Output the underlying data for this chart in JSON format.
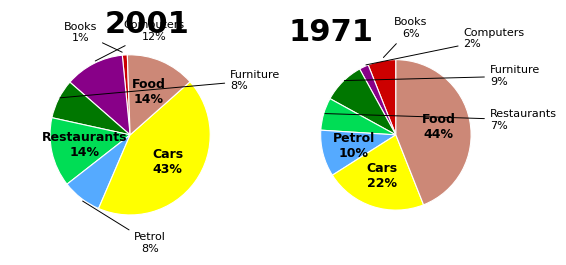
{
  "chart2001": {
    "title": "2001",
    "labels": [
      "Books",
      "Computers",
      "Furniture",
      "Restaurants",
      "Petrol",
      "Cars",
      "Food"
    ],
    "values": [
      1,
      12,
      8,
      14,
      8,
      43,
      14
    ],
    "colors": [
      "#cc0000",
      "#880088",
      "#007700",
      "#00dd55",
      "#55aaff",
      "#ffff00",
      "#cc8877"
    ],
    "startangle": 92,
    "outside_labels": [
      "Books\n1%",
      "Computers\n12%",
      "Furniture\n8%",
      null,
      "Petrol\n8%",
      null,
      null
    ],
    "inside_labels": [
      null,
      null,
      null,
      "Restaurants\n14%",
      null,
      "Cars\n43%",
      "Food\n14%"
    ]
  },
  "chart1971": {
    "title": "1971",
    "labels": [
      "Books",
      "Computers",
      "Furniture",
      "Restaurants",
      "Petrol",
      "Cars",
      "Food"
    ],
    "values": [
      6,
      2,
      9,
      7,
      10,
      22,
      44
    ],
    "colors": [
      "#cc0000",
      "#880088",
      "#007700",
      "#00dd55",
      "#55aaff",
      "#ffff00",
      "#cc8877"
    ],
    "startangle": 90,
    "outside_labels": [
      "Books\n6%",
      "Computers\n2%",
      "Furniture\n9%",
      "Restaurants\n7%",
      null,
      null,
      null
    ],
    "inside_labels": [
      null,
      null,
      null,
      null,
      "Petrol\n10%",
      "Cars\n22%",
      "Food\n44%"
    ]
  },
  "title_fontsize": 22,
  "inside_label_fontsize": 9,
  "outside_label_fontsize": 8,
  "background_color": "#ffffff"
}
